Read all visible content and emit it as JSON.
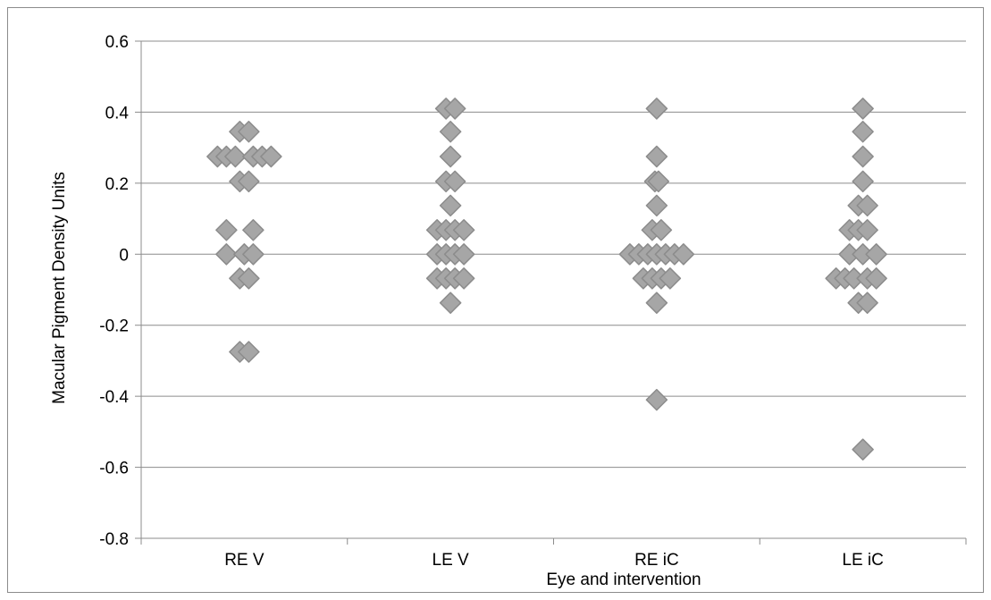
{
  "chart_data": {
    "type": "scatter",
    "xlabel": "Eye and intervention",
    "ylabel": "Macular Pigment Density Units",
    "categories": [
      "RE V",
      "LE V",
      "RE iC",
      "LE iC"
    ],
    "ylim": [
      -0.8,
      0.6
    ],
    "yticks": [
      "0.6",
      "0.4",
      "0.2",
      "0",
      "-0.2",
      "-0.4",
      "-0.6",
      "-0.8"
    ],
    "grid": "horizontal",
    "legend": "none",
    "marker": "diamond",
    "marker_color": "#a6a6a6",
    "marker_edge_color": "#8c8c8c",
    "series": [
      {
        "category": "RE V",
        "points": [
          {
            "offset": -3,
            "y": 0.275
          },
          {
            "offset": -2,
            "y": 0.275
          },
          {
            "offset": -1,
            "y": 0.275
          },
          {
            "offset": 1,
            "y": 0.275
          },
          {
            "offset": 2,
            "y": 0.275
          },
          {
            "offset": 3,
            "y": 0.275
          },
          {
            "offset": -0.5,
            "y": 0.345
          },
          {
            "offset": 0.5,
            "y": 0.345
          },
          {
            "offset": -0.5,
            "y": 0.205
          },
          {
            "offset": 0.5,
            "y": 0.205
          },
          {
            "offset": -2,
            "y": 0.068
          },
          {
            "offset": 1,
            "y": 0.068
          },
          {
            "offset": -2,
            "y": 0.0
          },
          {
            "offset": 0,
            "y": 0.0
          },
          {
            "offset": 1,
            "y": 0.0
          },
          {
            "offset": -0.5,
            "y": -0.068
          },
          {
            "offset": 0.5,
            "y": -0.068
          },
          {
            "offset": -0.5,
            "y": -0.275
          },
          {
            "offset": 0.5,
            "y": -0.275
          }
        ]
      },
      {
        "category": "LE V",
        "points": [
          {
            "offset": -0.5,
            "y": 0.41
          },
          {
            "offset": 0.5,
            "y": 0.41
          },
          {
            "offset": 0,
            "y": 0.345
          },
          {
            "offset": 0,
            "y": 0.275
          },
          {
            "offset": -0.5,
            "y": 0.205
          },
          {
            "offset": 0.5,
            "y": 0.205
          },
          {
            "offset": 0,
            "y": 0.137
          },
          {
            "offset": -1.5,
            "y": 0.068
          },
          {
            "offset": -0.5,
            "y": 0.068
          },
          {
            "offset": 0.5,
            "y": 0.068
          },
          {
            "offset": 1.5,
            "y": 0.068
          },
          {
            "offset": -1.5,
            "y": 0.0
          },
          {
            "offset": -0.5,
            "y": 0.0
          },
          {
            "offset": 0.5,
            "y": 0.0
          },
          {
            "offset": 1.5,
            "y": 0.0
          },
          {
            "offset": -1.5,
            "y": -0.068
          },
          {
            "offset": -0.5,
            "y": -0.068
          },
          {
            "offset": 0.5,
            "y": -0.068
          },
          {
            "offset": 1.5,
            "y": -0.068
          },
          {
            "offset": 0,
            "y": -0.137
          }
        ]
      },
      {
        "category": "RE iC",
        "points": [
          {
            "offset": 0,
            "y": 0.41
          },
          {
            "offset": 0,
            "y": 0.275
          },
          {
            "offset": -0.2,
            "y": 0.205
          },
          {
            "offset": 0.2,
            "y": 0.205
          },
          {
            "offset": 0,
            "y": 0.137
          },
          {
            "offset": -0.5,
            "y": 0.068
          },
          {
            "offset": 0.5,
            "y": 0.068
          },
          {
            "offset": -3,
            "y": 0.0
          },
          {
            "offset": -2,
            "y": 0.0
          },
          {
            "offset": -1,
            "y": 0.0
          },
          {
            "offset": 0,
            "y": 0.0
          },
          {
            "offset": 1,
            "y": 0.0
          },
          {
            "offset": 2,
            "y": 0.0
          },
          {
            "offset": 3,
            "y": 0.0
          },
          {
            "offset": -1.5,
            "y": -0.068
          },
          {
            "offset": -0.5,
            "y": -0.068
          },
          {
            "offset": 0.5,
            "y": -0.068
          },
          {
            "offset": 1.5,
            "y": -0.068
          },
          {
            "offset": 0,
            "y": -0.137
          },
          {
            "offset": 0,
            "y": -0.41
          }
        ]
      },
      {
        "category": "LE iC",
        "points": [
          {
            "offset": 0,
            "y": 0.41
          },
          {
            "offset": 0,
            "y": 0.345
          },
          {
            "offset": 0,
            "y": 0.275
          },
          {
            "offset": 0,
            "y": 0.205
          },
          {
            "offset": -0.5,
            "y": 0.137
          },
          {
            "offset": 0.5,
            "y": 0.137
          },
          {
            "offset": -1.5,
            "y": 0.068
          },
          {
            "offset": -0.5,
            "y": 0.068
          },
          {
            "offset": 0.5,
            "y": 0.068
          },
          {
            "offset": -1.5,
            "y": 0.0
          },
          {
            "offset": 0,
            "y": 0.0
          },
          {
            "offset": 1.5,
            "y": 0.0
          },
          {
            "offset": -3,
            "y": -0.068
          },
          {
            "offset": -2,
            "y": -0.068
          },
          {
            "offset": -1,
            "y": -0.068
          },
          {
            "offset": 0.5,
            "y": -0.068
          },
          {
            "offset": 1.5,
            "y": -0.068
          },
          {
            "offset": -0.5,
            "y": -0.137
          },
          {
            "offset": 0.5,
            "y": -0.137
          },
          {
            "offset": 0,
            "y": -0.55
          }
        ]
      }
    ]
  }
}
